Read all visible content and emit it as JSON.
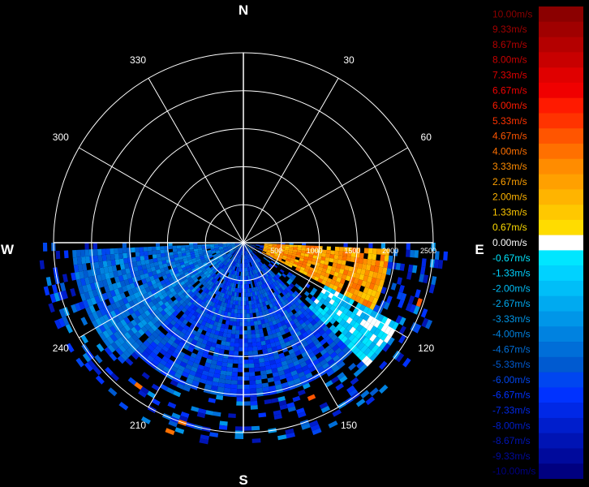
{
  "chart_data": {
    "type": "heatmap",
    "subtype": "polar-radar-velocity-ppi",
    "cardinals": [
      "N",
      "E",
      "S",
      "W"
    ],
    "azimuth_labels": [
      "30",
      "60",
      "120",
      "150",
      "210",
      "240",
      "300",
      "330"
    ],
    "range_labels": [
      "500",
      "1000",
      "1500",
      "2000",
      "2500"
    ],
    "range_max": 2500,
    "grid": true,
    "colorbar": {
      "placement": "right",
      "levels": [
        {
          "value": 10.0,
          "label": "10.00m/s",
          "color": "#8b0000"
        },
        {
          "value": 9.33,
          "label": "9.33m/s",
          "color": "#a00000"
        },
        {
          "value": 8.67,
          "label": "8.67m/s",
          "color": "#b40000"
        },
        {
          "value": 8.0,
          "label": "8.00m/s",
          "color": "#c80000"
        },
        {
          "value": 7.33,
          "label": "7.33m/s",
          "color": "#e00000"
        },
        {
          "value": 6.67,
          "label": "6.67m/s",
          "color": "#f00000"
        },
        {
          "value": 6.0,
          "label": "6.00m/s",
          "color": "#ff1a00"
        },
        {
          "value": 5.33,
          "label": "5.33m/s",
          "color": "#ff3300"
        },
        {
          "value": 4.67,
          "label": "4.67m/s",
          "color": "#ff5500"
        },
        {
          "value": 4.0,
          "label": "4.00m/s",
          "color": "#ff7000"
        },
        {
          "value": 3.33,
          "label": "3.33m/s",
          "color": "#ff8c00"
        },
        {
          "value": 2.67,
          "label": "2.67m/s",
          "color": "#ffa000"
        },
        {
          "value": 2.0,
          "label": "2.00m/s",
          "color": "#ffb400"
        },
        {
          "value": 1.33,
          "label": "1.33m/s",
          "color": "#ffc800"
        },
        {
          "value": 0.67,
          "label": "0.67m/s",
          "color": "#ffdc00"
        },
        {
          "value": 0.0,
          "label": "0.00m/s",
          "color": "#ffffff"
        },
        {
          "value": -0.67,
          "label": "-0.67m/s",
          "color": "#00e6ff"
        },
        {
          "value": -1.33,
          "label": "-1.33m/s",
          "color": "#00d2ff"
        },
        {
          "value": -2.0,
          "label": "-2.00m/s",
          "color": "#00bef8"
        },
        {
          "value": -2.67,
          "label": "-2.67m/s",
          "color": "#00aaf0"
        },
        {
          "value": -3.33,
          "label": "-3.33m/s",
          "color": "#0096e8"
        },
        {
          "value": -4.0,
          "label": "-4.00m/s",
          "color": "#0082e0"
        },
        {
          "value": -4.67,
          "label": "-4.67m/s",
          "color": "#006ed8"
        },
        {
          "value": -5.33,
          "label": "-5.33m/s",
          "color": "#005ad0"
        },
        {
          "value": -6.0,
          "label": "-6.00m/s",
          "color": "#0046f0"
        },
        {
          "value": -6.67,
          "label": "-6.67m/s",
          "color": "#0032ff"
        },
        {
          "value": -7.33,
          "label": "-7.33m/s",
          "color": "#0028e6"
        },
        {
          "value": -8.0,
          "label": "-8.00m/s",
          "color": "#001ecc"
        },
        {
          "value": -8.67,
          "label": "-8.67m/s",
          "color": "#0014b4"
        },
        {
          "value": -9.33,
          "label": "-9.33m/s",
          "color": "#000a9c"
        },
        {
          "value": -10.0,
          "label": "-10.00m/s",
          "color": "#000080"
        }
      ]
    },
    "echo_sector_deg": [
      90,
      270
    ],
    "echo_regions": [
      {
        "az_start": 92,
        "az_end": 118,
        "range_start": 250,
        "range_end": 1900,
        "value": 2.67
      },
      {
        "az_start": 118,
        "az_end": 135,
        "range_start": 1200,
        "range_end": 2300,
        "value": -1.33
      },
      {
        "az_start": 135,
        "az_end": 225,
        "range_start": 0,
        "range_end": 2000,
        "value": -6.0
      },
      {
        "az_start": 225,
        "az_end": 268,
        "range_start": 0,
        "range_end": 2200,
        "value": -4.67
      }
    ]
  }
}
